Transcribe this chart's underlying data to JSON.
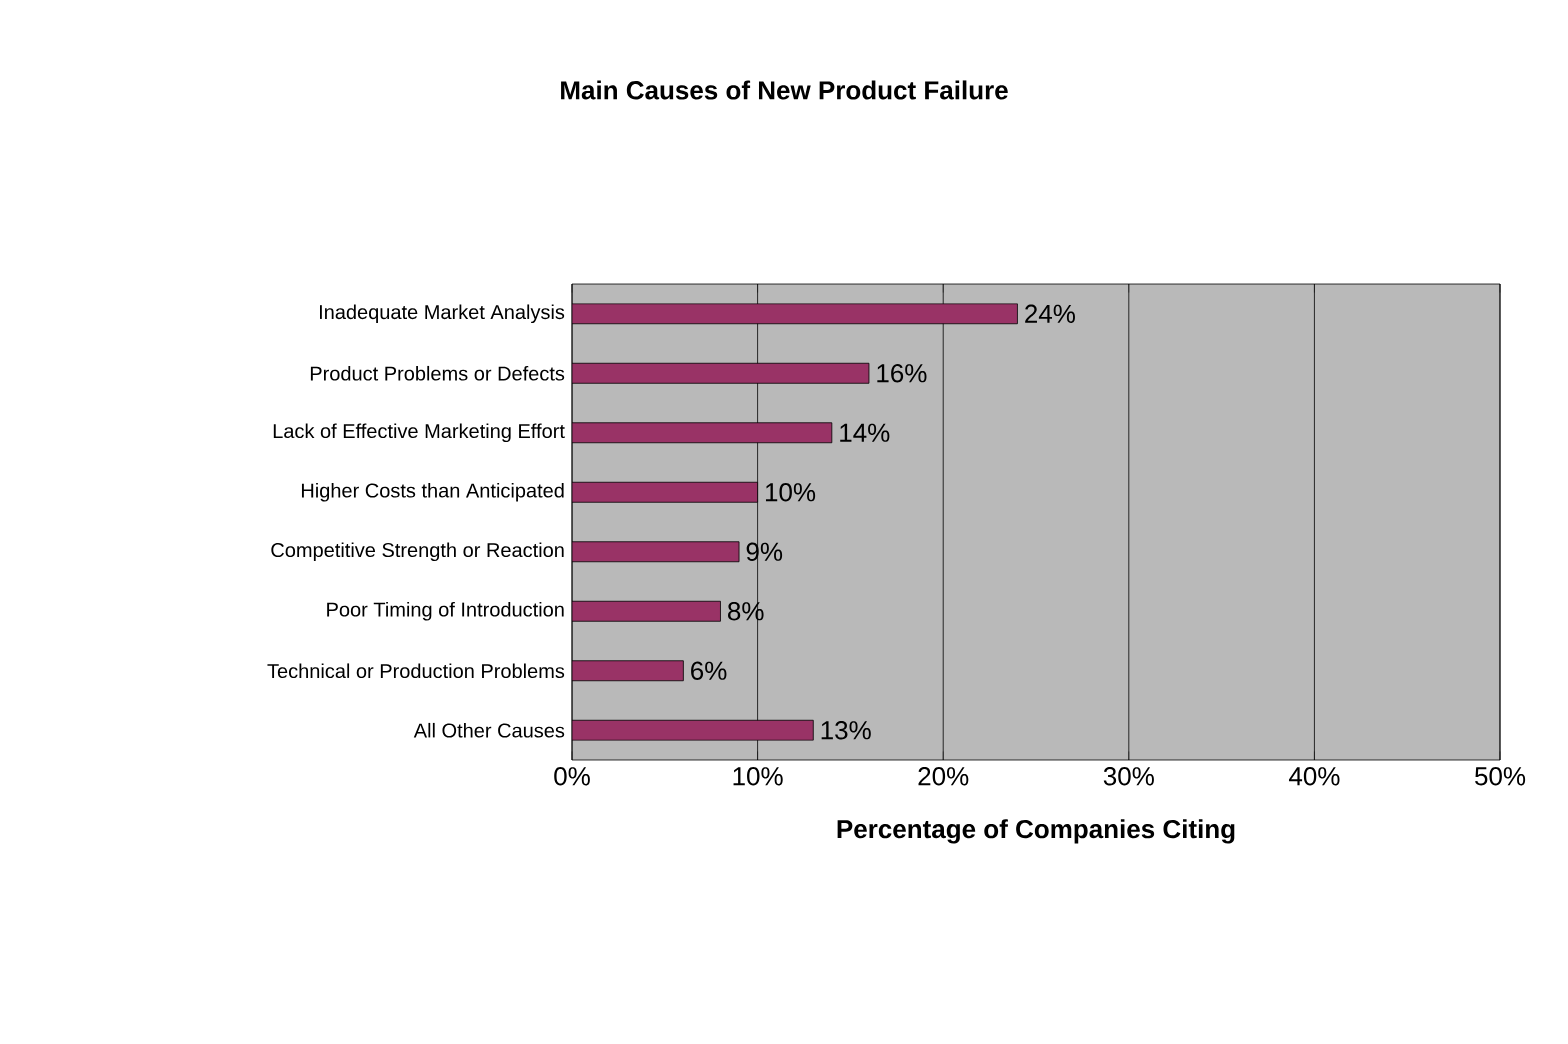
{
  "chart_data": {
    "type": "bar",
    "orientation": "horizontal",
    "title": "Main Causes of New Product Failure",
    "xlabel": "Percentage of Companies Citing",
    "categories": [
      "Inadequate Market Analysis",
      "Product Problems or Defects",
      "Lack of Effective Marketing Effort",
      "Higher Costs than Anticipated",
      "Competitive Strength or Reaction",
      "Poor Timing of Introduction",
      "Technical or Production Problems",
      "All Other Causes"
    ],
    "values": [
      24,
      16,
      14,
      10,
      9,
      8,
      6,
      13
    ],
    "value_labels": [
      "24%",
      "16%",
      "14%",
      "10%",
      "9%",
      "8%",
      "6%",
      "13%"
    ],
    "color": "#993366",
    "xlim": [
      0,
      50
    ],
    "xticks": [
      {
        "value": 0,
        "label": "0%"
      },
      {
        "value": 10,
        "label": "10%"
      },
      {
        "value": 20,
        "label": "20%"
      },
      {
        "value": 30,
        "label": "30%"
      },
      {
        "value": 40,
        "label": "40%"
      },
      {
        "value": 50,
        "label": "50%"
      }
    ],
    "grid": "x"
  }
}
